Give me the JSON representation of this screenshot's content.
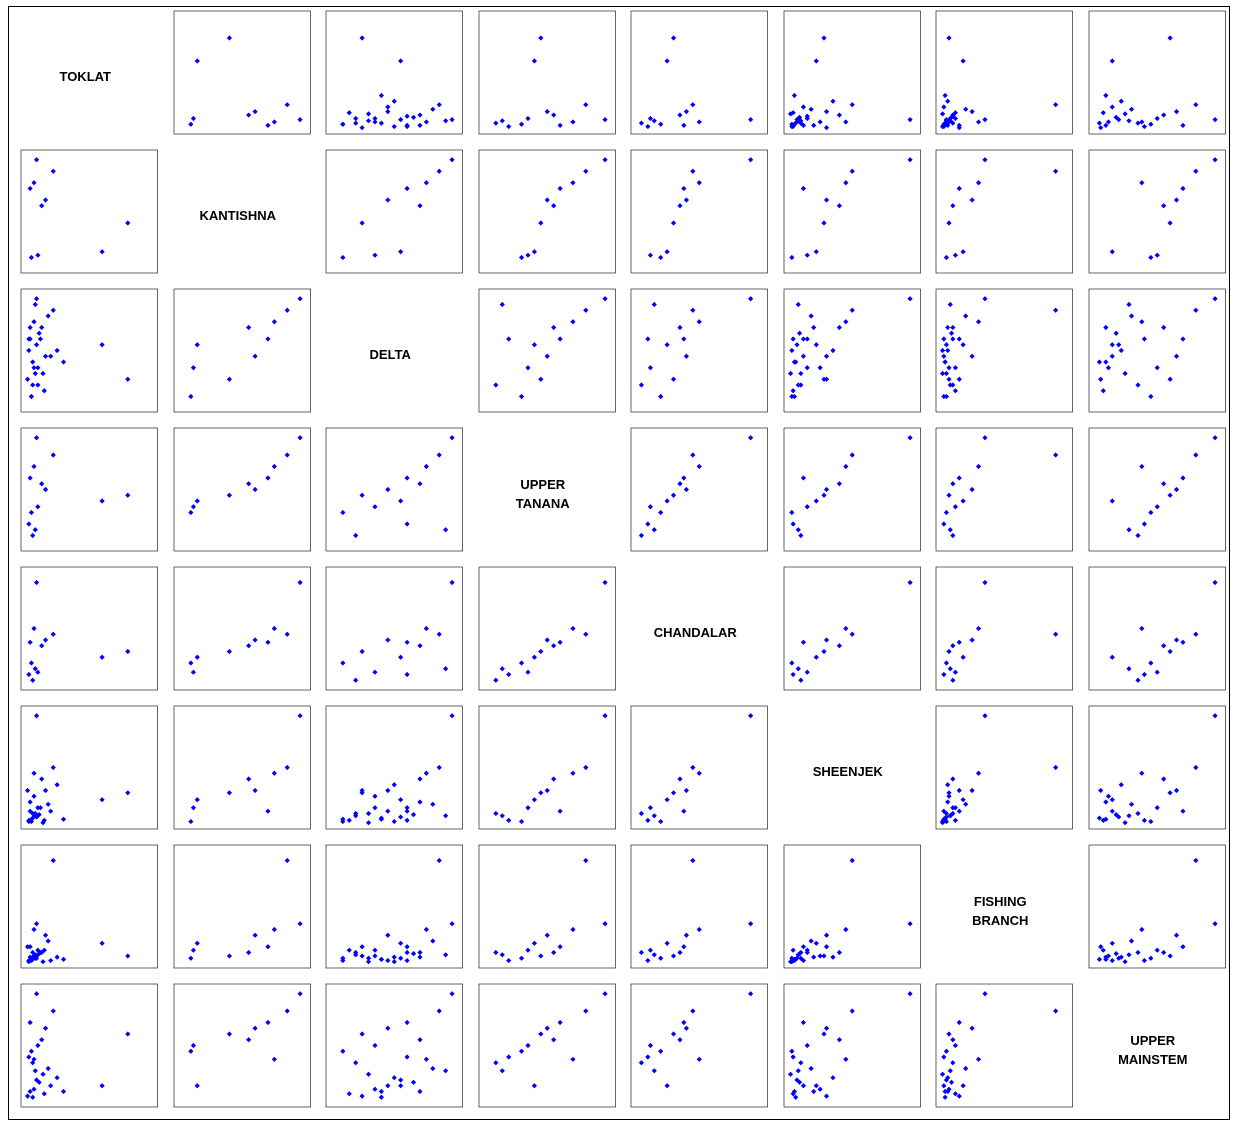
{
  "chart_data": {
    "type": "scatter_matrix",
    "color": "#0000ff",
    "variables": [
      {
        "name": "TOKLAT",
        "lim": [
          0,
          100
        ],
        "values": [
          5,
          8,
          3,
          10,
          12,
          6,
          4,
          15,
          20,
          7,
          9,
          2,
          11,
          14,
          18,
          25,
          30,
          6,
          3,
          8,
          5,
          10,
          60,
          80,
          13,
          16,
          4,
          7,
          22,
          9
        ]
      },
      {
        "name": "KANTISHNA",
        "lim": [
          0,
          100
        ],
        "values": [
          null,
          null,
          null,
          null,
          null,
          null,
          null,
          null,
          null,
          null,
          null,
          null,
          null,
          null,
          null,
          null,
          null,
          null,
          null,
          null,
          10,
          12,
          15,
          40,
          55,
          60,
          70,
          75,
          85,
          95
        ]
      },
      {
        "name": "DELTA",
        "lim": [
          0,
          100
        ],
        "values": [
          10,
          30,
          50,
          20,
          60,
          40,
          70,
          15,
          45,
          35,
          55,
          25,
          65,
          30,
          80,
          50,
          40,
          20,
          60,
          90,
          10,
          35,
          55,
          25,
          70,
          45,
          60,
          75,
          85,
          95
        ]
      },
      {
        "name": "UPPER TANANA",
        "lim": [
          0,
          100
        ],
        "values": [
          null,
          null,
          null,
          null,
          null,
          null,
          null,
          null,
          null,
          null,
          null,
          null,
          null,
          null,
          null,
          null,
          null,
          10,
          20,
          15,
          30,
          35,
          40,
          45,
          55,
          50,
          60,
          70,
          80,
          95
        ]
      },
      {
        "name": "CHANDALAR",
        "lim": [
          0,
          100
        ],
        "values": [
          null,
          null,
          null,
          null,
          null,
          null,
          null,
          null,
          null,
          null,
          null,
          null,
          null,
          null,
          null,
          null,
          null,
          5,
          10,
          15,
          20,
          12,
          25,
          30,
          35,
          40,
          38,
          50,
          45,
          90
        ]
      },
      {
        "name": "SHEENJEK",
        "lim": [
          0,
          100
        ],
        "values": [
          5,
          10,
          3,
          8,
          15,
          6,
          20,
          4,
          12,
          25,
          7,
          30,
          9,
          2,
          18,
          35,
          5,
          10,
          4,
          8,
          3,
          15,
          22,
          28,
          40,
          30,
          12,
          45,
          50,
          95
        ]
      },
      {
        "name": "FISHING BRANCH",
        "lim": [
          0,
          100
        ],
        "values": [
          3,
          5,
          2,
          8,
          10,
          4,
          6,
          12,
          3,
          7,
          5,
          15,
          9,
          2,
          20,
          6,
          4,
          10,
          3,
          8,
          5,
          12,
          18,
          7,
          10,
          25,
          15,
          30,
          90,
          35
        ]
      },
      {
        "name": "UPPER MAINSTEM",
        "lim": [
          0,
          100
        ],
        "values": [
          null,
          null,
          null,
          null,
          null,
          5,
          10,
          8,
          15,
          12,
          20,
          6,
          18,
          25,
          30,
          22,
          10,
          35,
          40,
          28,
          45,
          50,
          15,
          60,
          55,
          65,
          70,
          38,
          80,
          95
        ]
      }
    ]
  }
}
